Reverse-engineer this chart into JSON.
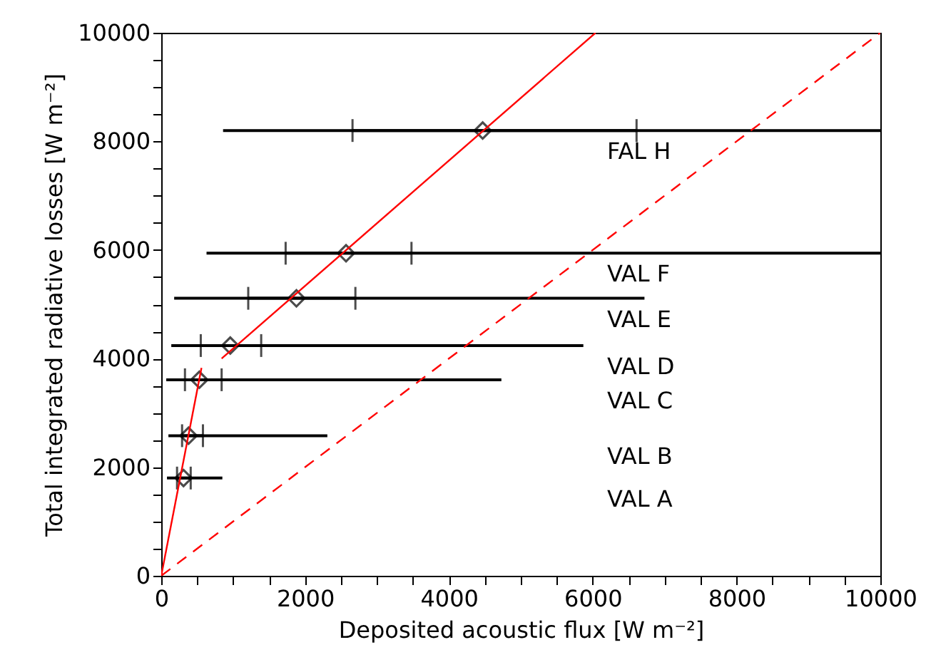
{
  "chart_data": {
    "type": "scatter",
    "xlabel": "Deposited acoustic flux [W m⁻²]",
    "ylabel": "Total integrated radiative losses [W m⁻²]",
    "xlim": [
      0,
      10000
    ],
    "ylim": [
      0,
      10000
    ],
    "xticks": [
      0,
      {
        "value": 500,
        "label": null
      },
      {
        "value": 1000,
        "label": null
      },
      {
        "value": 1500,
        "label": null
      },
      2000,
      {
        "value": 2500,
        "label": null
      },
      {
        "value": 3000,
        "label": null
      },
      {
        "value": 3500,
        "label": null
      },
      4000,
      {
        "value": 4500,
        "label": null
      },
      {
        "value": 5000,
        "label": null
      },
      {
        "value": 5500,
        "label": null
      },
      6000,
      {
        "value": 6500,
        "label": null
      },
      {
        "value": 7000,
        "label": null
      },
      {
        "value": 7500,
        "label": null
      },
      8000,
      {
        "value": 8500,
        "label": null
      },
      {
        "value": 9000,
        "label": null
      },
      {
        "value": 9500,
        "label": null
      },
      10000
    ],
    "yticks": [
      0,
      {
        "value": 500,
        "label": null
      },
      {
        "value": 1000,
        "label": null
      },
      {
        "value": 1500,
        "label": null
      },
      2000,
      {
        "value": 2500,
        "label": null
      },
      {
        "value": 3000,
        "label": null
      },
      {
        "value": 3500,
        "label": null
      },
      4000,
      {
        "value": 4500,
        "label": null
      },
      {
        "value": 5000,
        "label": null
      },
      {
        "value": 5500,
        "label": null
      },
      6000,
      {
        "value": 6500,
        "label": null
      },
      {
        "value": 7000,
        "label": null
      },
      {
        "value": 7500,
        "label": null
      },
      8000,
      {
        "value": 8500,
        "label": null
      },
      {
        "value": 9000,
        "label": null
      },
      {
        "value": 9500,
        "label": null
      },
      10000
    ],
    "grid": false,
    "series": [
      {
        "color": "#000000",
        "marker": "diamond",
        "x": [
          310,
          380,
          530,
          960,
          1880,
          2570,
          4470
        ],
        "values": [
          1800,
          2580,
          3610,
          4240,
          5110,
          5940,
          8200
        ],
        "xerrors": [
          [
            220,
            410
          ],
          [
            290,
            580
          ],
          [
            330,
            840
          ],
          [
            550,
            1390
          ],
          [
            1210,
            2700
          ],
          [
            1730,
            3480
          ],
          [
            2660,
            6610
          ]
        ]
      },
      {
        "type": "line",
        "color": "#000000",
        "line_style": "solid",
        "x": [
          80,
          850
        ],
        "values": [
          1800,
          1800
        ]
      },
      {
        "type": "line",
        "color": "#000000",
        "line_style": "solid",
        "x": [
          100,
          2310
        ],
        "values": [
          2580,
          2580
        ]
      },
      {
        "type": "line",
        "color": "#000000",
        "line_style": "solid",
        "x": [
          70,
          4730
        ],
        "values": [
          3610,
          3610
        ]
      },
      {
        "type": "line",
        "color": "#000000",
        "line_style": "solid",
        "x": [
          140,
          5870
        ],
        "values": [
          4240,
          4240
        ]
      },
      {
        "type": "line",
        "color": "#000000",
        "line_style": "solid",
        "x": [
          180,
          6720
        ],
        "values": [
          5110,
          5110
        ]
      },
      {
        "type": "line",
        "color": "#000000",
        "line_style": "solid",
        "x": [
          630,
          10000
        ],
        "values": [
          5940,
          5940
        ]
      },
      {
        "type": "line",
        "color": "#000000",
        "line_style": "solid",
        "x": [
          860,
          10000
        ],
        "values": [
          8200,
          8200
        ]
      },
      {
        "type": "line",
        "color": "#ff0000",
        "line_style": "solid",
        "x": [
          0,
          560
        ],
        "values": [
          0,
          3830
        ]
      },
      {
        "type": "line",
        "color": "#ff0000",
        "line_style": "solid",
        "x": [
          840,
          6040
        ],
        "values": [
          4000,
          10000
        ]
      },
      {
        "type": "line",
        "color": "#ff0000",
        "line_style": "dashed",
        "x": [
          0,
          10000
        ],
        "values": [
          0,
          10000
        ]
      }
    ],
    "annotations": [
      "VAL A",
      "VAL B",
      "VAL C",
      "VAL D",
      "VAL E",
      "VAL F",
      "FAL H"
    ]
  }
}
